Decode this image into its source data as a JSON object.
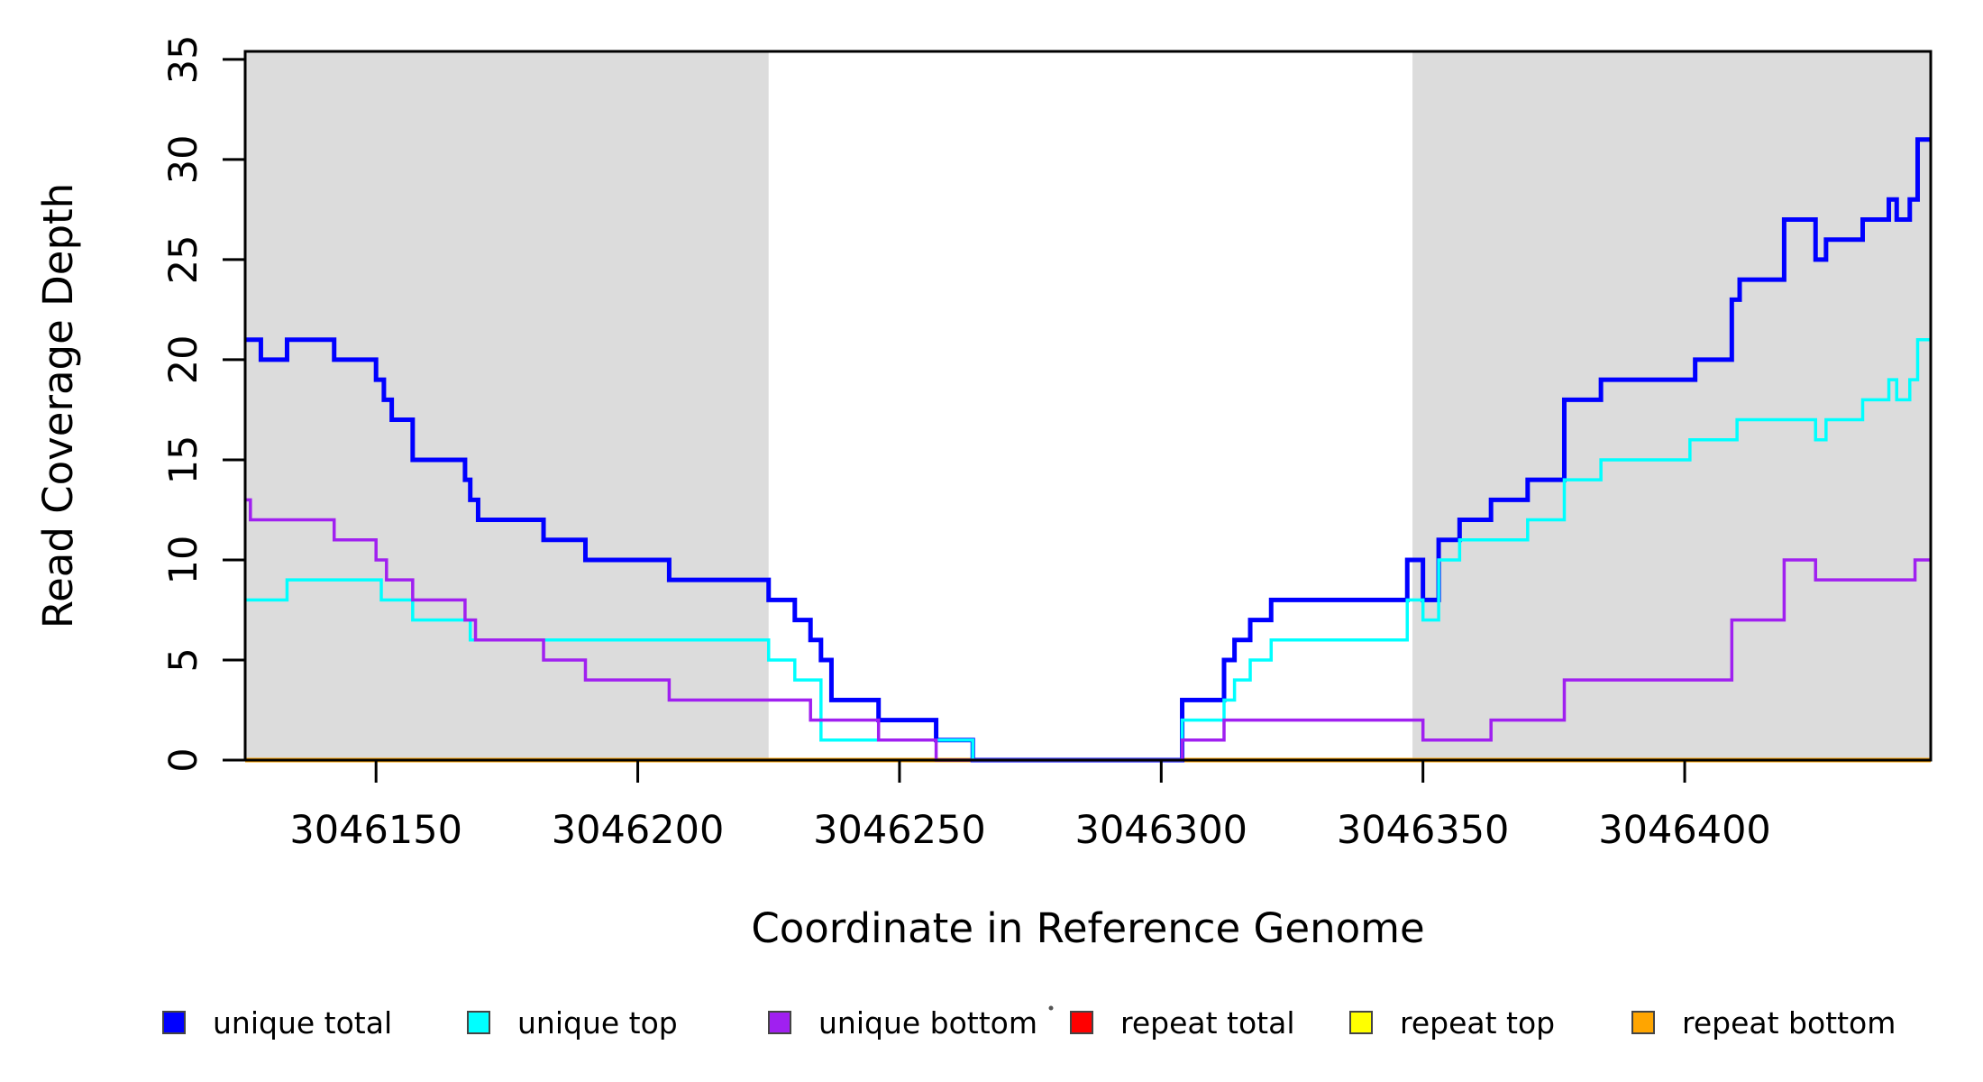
{
  "chart_data": {
    "type": "line",
    "subtype": "step",
    "title": "",
    "xlabel": "Coordinate in Reference Genome",
    "ylabel": "Read Coverage Depth",
    "xlim": [
      3046125,
      3046447
    ],
    "ylim": [
      0,
      35.4
    ],
    "x_ticks": [
      3046150,
      3046200,
      3046250,
      3046300,
      3046350,
      3046400
    ],
    "y_ticks": [
      0,
      5,
      10,
      15,
      20,
      25,
      30,
      35
    ],
    "grid": false,
    "legend_position": "bottom",
    "shaded_regions": [
      {
        "name": "left-gray-band",
        "x0": 3046125,
        "x1": 3046225,
        "color": "#DCDCDC"
      },
      {
        "name": "right-gray-band",
        "x0": 3046348,
        "x1": 3046447,
        "color": "#DCDCDC"
      }
    ],
    "series": [
      {
        "name": "repeat total",
        "color": "#FF0000",
        "width": 5,
        "steps": [
          [
            3046125,
            0
          ]
        ]
      },
      {
        "name": "repeat top",
        "color": "#FFFF00",
        "width": 4,
        "steps": [
          [
            3046125,
            0
          ]
        ]
      },
      {
        "name": "repeat bottom",
        "color": "#FFA500",
        "width": 5,
        "steps": [
          [
            3046125,
            0
          ]
        ]
      },
      {
        "name": "unique total",
        "color": "#0000FF",
        "width": 5,
        "steps": [
          [
            3046125,
            21
          ],
          [
            3046128,
            20
          ],
          [
            3046133,
            21
          ],
          [
            3046142,
            20
          ],
          [
            3046150,
            19
          ],
          [
            3046151.5,
            18
          ],
          [
            3046153,
            17
          ],
          [
            3046157,
            15
          ],
          [
            3046167,
            14
          ],
          [
            3046168,
            13
          ],
          [
            3046169.5,
            12
          ],
          [
            3046182,
            11
          ],
          [
            3046190,
            10
          ],
          [
            3046206,
            9
          ],
          [
            3046225,
            8
          ],
          [
            3046230,
            7
          ],
          [
            3046233,
            6
          ],
          [
            3046235,
            5
          ],
          [
            3046237,
            3
          ],
          [
            3046246,
            2
          ],
          [
            3046257,
            1
          ],
          [
            3046264,
            0
          ],
          [
            3046304,
            3
          ],
          [
            3046312,
            5
          ],
          [
            3046314,
            6
          ],
          [
            3046317,
            7
          ],
          [
            3046321,
            8
          ],
          [
            3046347,
            10
          ],
          [
            3046350,
            8
          ],
          [
            3046353,
            11
          ],
          [
            3046357,
            12
          ],
          [
            3046363,
            13
          ],
          [
            3046370,
            14
          ],
          [
            3046377,
            18
          ],
          [
            3046384,
            19
          ],
          [
            3046402,
            20
          ],
          [
            3046409,
            23
          ],
          [
            3046410.5,
            24
          ],
          [
            3046419,
            27
          ],
          [
            3046425,
            25
          ],
          [
            3046427,
            26
          ],
          [
            3046434,
            27
          ],
          [
            3046439,
            28
          ],
          [
            3046440.5,
            27
          ],
          [
            3046443,
            28
          ],
          [
            3046444.5,
            31
          ]
        ]
      },
      {
        "name": "unique top",
        "color": "#00FFFF",
        "width": 3.5,
        "steps": [
          [
            3046125,
            8
          ],
          [
            3046133,
            9
          ],
          [
            3046151,
            8
          ],
          [
            3046157,
            7
          ],
          [
            3046168,
            6
          ],
          [
            3046225,
            5
          ],
          [
            3046230,
            4
          ],
          [
            3046235,
            1
          ],
          [
            3046264,
            0
          ],
          [
            3046304,
            2
          ],
          [
            3046312,
            3
          ],
          [
            3046314,
            4
          ],
          [
            3046317,
            5
          ],
          [
            3046321,
            6
          ],
          [
            3046347,
            8
          ],
          [
            3046350,
            7
          ],
          [
            3046353,
            10
          ],
          [
            3046357,
            11
          ],
          [
            3046370,
            12
          ],
          [
            3046377,
            14
          ],
          [
            3046384,
            15
          ],
          [
            3046401,
            16
          ],
          [
            3046410,
            17
          ],
          [
            3046425,
            16
          ],
          [
            3046427,
            17
          ],
          [
            3046434,
            18
          ],
          [
            3046439,
            19
          ],
          [
            3046440.5,
            18
          ],
          [
            3046443,
            19
          ],
          [
            3046444.5,
            21
          ]
        ]
      },
      {
        "name": "unique bottom",
        "color": "#A020F0",
        "width": 3.5,
        "steps": [
          [
            3046125,
            13
          ],
          [
            3046126,
            12
          ],
          [
            3046142,
            11
          ],
          [
            3046150,
            10
          ],
          [
            3046152,
            9
          ],
          [
            3046157,
            8
          ],
          [
            3046167,
            7
          ],
          [
            3046169,
            6
          ],
          [
            3046182,
            5
          ],
          [
            3046190,
            4
          ],
          [
            3046206,
            3
          ],
          [
            3046233,
            2
          ],
          [
            3046246,
            1
          ],
          [
            3046257,
            0
          ],
          [
            3046304,
            1
          ],
          [
            3046312,
            2
          ],
          [
            3046350,
            1
          ],
          [
            3046363,
            2
          ],
          [
            3046377,
            4
          ],
          [
            3046409,
            7
          ],
          [
            3046419,
            10
          ],
          [
            3046425,
            9
          ],
          [
            3046444,
            10
          ]
        ]
      }
    ],
    "legend": [
      {
        "label": "unique total",
        "color": "#0000FF"
      },
      {
        "label": "unique top",
        "color": "#00FFFF"
      },
      {
        "label": "unique bottom",
        "color": "#A020F0"
      },
      {
        "label": "repeat total",
        "color": "#FF0000"
      },
      {
        "label": "repeat top",
        "color": "#FFFF00"
      },
      {
        "label": "repeat bottom",
        "color": "#FFA500"
      }
    ],
    "stray_dot": true
  }
}
